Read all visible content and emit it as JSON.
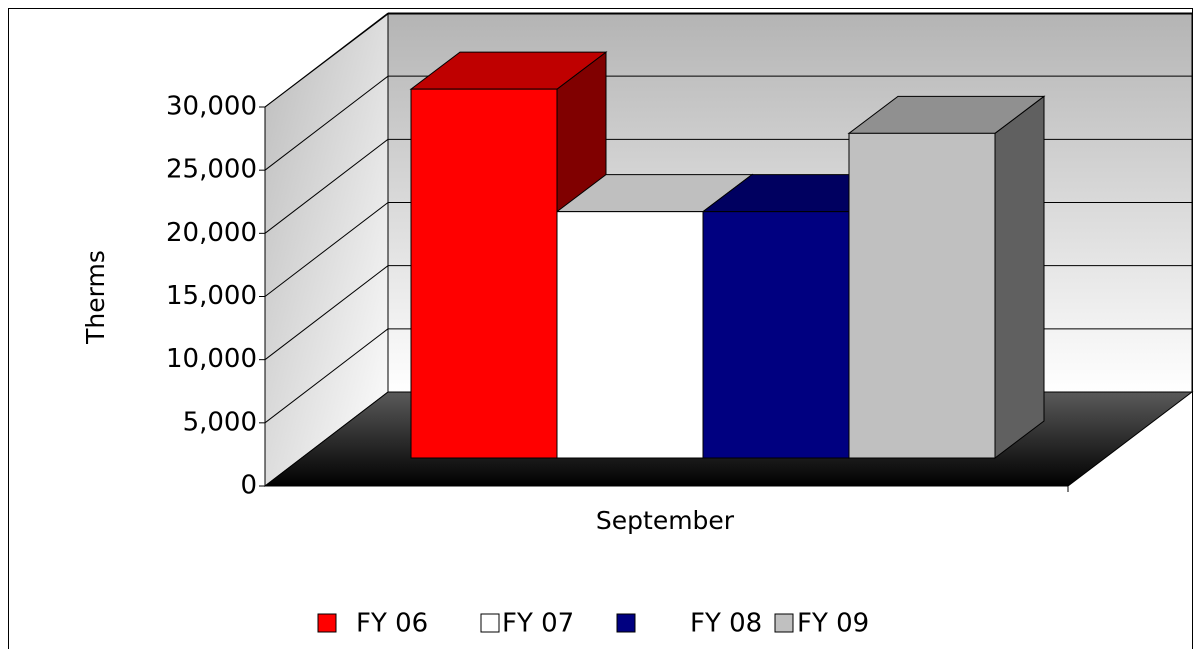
{
  "chart_data": {
    "type": "bar3d",
    "categories": [
      "September"
    ],
    "y_label": "Therms",
    "series": [
      {
        "name": "FY 06",
        "color": "#ff0000",
        "values": [
          29200
        ]
      },
      {
        "name": "FY 07",
        "color": "#ffffff",
        "values": [
          19500
        ]
      },
      {
        "name": "FY 08",
        "color": "#000080",
        "values": [
          19500
        ]
      },
      {
        "name": "FY 09",
        "color": "#c0c0c0",
        "values": [
          25700
        ]
      }
    ],
    "ylim": [
      0,
      30000
    ],
    "yticks": [
      {
        "value": 0,
        "label": "0"
      },
      {
        "value": 5000,
        "label": "5,000"
      },
      {
        "value": 10000,
        "label": "10,000"
      },
      {
        "value": 15000,
        "label": "15,000"
      },
      {
        "value": 20000,
        "label": "20,000"
      },
      {
        "value": 25000,
        "label": "25,000"
      },
      {
        "value": 30000,
        "label": "30,000"
      }
    ],
    "grid": true,
    "legend": "bottom"
  }
}
